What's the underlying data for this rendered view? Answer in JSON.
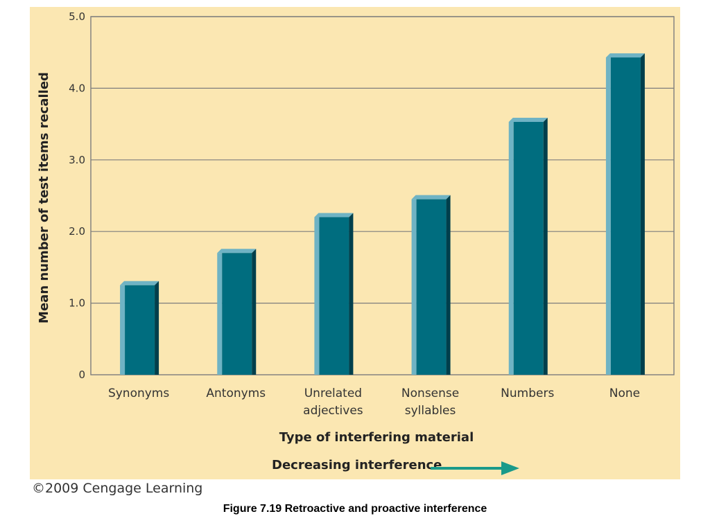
{
  "chart_data": {
    "type": "bar",
    "categories": [
      "Synonyms",
      "Antonyms",
      "Unrelated adjectives",
      "Nonsense syllables",
      "Numbers",
      "None"
    ],
    "category_lines": [
      [
        "Synonyms"
      ],
      [
        "Antonyms"
      ],
      [
        "Unrelated",
        "adjectives"
      ],
      [
        "Nonsense",
        "syllables"
      ],
      [
        "Numbers"
      ],
      [
        "None"
      ]
    ],
    "values": [
      1.25,
      1.7,
      2.2,
      2.45,
      3.53,
      4.43
    ],
    "ylabel": "Mean number of test items recalled",
    "xlabel": "Type of interfering material",
    "ylim": [
      0,
      5.0
    ],
    "yticks": [
      0,
      1.0,
      2.0,
      3.0,
      4.0,
      5.0
    ],
    "ytick_labels": [
      "0",
      "1.0",
      "2.0",
      "3.0",
      "4.0",
      "5.0"
    ],
    "grid": true,
    "annotation": "Decreasing interference",
    "colors": {
      "bar_front": "#006d7f",
      "bar_light": "#6fb3c4",
      "bar_dark": "#003f4c",
      "background": "#fbe7b2",
      "grid": "#7d7d7d",
      "arrow": "#1a9a8a"
    }
  },
  "copyright": "©2009 Cengage Learning",
  "caption": "Figure 7.19  Retroactive and proactive interference"
}
